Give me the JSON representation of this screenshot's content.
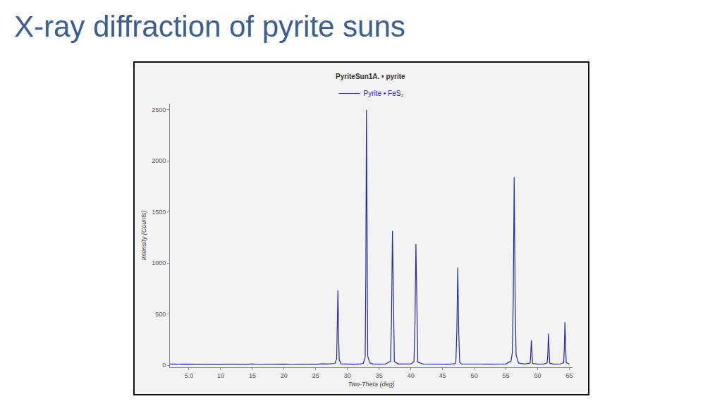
{
  "page": {
    "title": "X-ray diffraction of pyrite suns"
  },
  "chart_data": {
    "type": "line",
    "title": "PyriteSun1A. • pyrite",
    "x_label": "Two-Theta (deg)",
    "y_label": "Intensity (Counts)",
    "xlim": [
      2,
      65.5
    ],
    "xticks": [
      {
        "value": 5,
        "label": "5.0"
      },
      10,
      15,
      20,
      25,
      30,
      35,
      40,
      45,
      50,
      55,
      60,
      65
    ],
    "ylim": [
      -20,
      2560
    ],
    "yticks": [
      0,
      500,
      1000,
      1500,
      2000,
      2500
    ],
    "grid": false,
    "legend": "top",
    "series": [
      {
        "name": "Pyrite • FeS₂",
        "color": "#2a2aa0",
        "x": [
          2,
          3,
          4,
          5,
          6,
          7,
          8,
          9,
          10,
          11,
          12,
          13,
          14,
          15,
          16,
          17,
          18,
          19,
          20,
          21,
          22,
          23,
          24,
          25,
          26,
          27,
          27.5,
          28,
          28.3,
          28.4,
          28.5,
          28.6,
          28.7,
          29,
          30,
          31,
          32,
          32.5,
          32.8,
          32.9,
          33.0,
          33.1,
          33.2,
          33.5,
          34,
          35,
          36,
          36.8,
          36.95,
          37.1,
          37.25,
          37.4,
          38,
          39,
          40,
          40.5,
          40.65,
          40.8,
          40.95,
          41.1,
          42,
          43,
          44,
          45,
          46,
          47,
          47.1,
          47.25,
          47.4,
          47.55,
          47.7,
          48,
          49,
          50,
          51,
          52,
          53,
          54,
          55,
          55.8,
          56.0,
          56.15,
          56.3,
          56.45,
          56.6,
          57,
          58,
          58.8,
          58.9,
          59.0,
          59.1,
          59.2,
          60,
          61,
          61.5,
          61.6,
          61.7,
          61.8,
          61.9,
          62.5,
          63,
          63.5,
          64.1,
          64.2,
          64.3,
          64.4,
          64.5,
          65
        ],
        "values": [
          12,
          8,
          10,
          9,
          7,
          11,
          6,
          8,
          7,
          9,
          6,
          8,
          7,
          12,
          6,
          8,
          7,
          9,
          10,
          6,
          8,
          7,
          9,
          8,
          14,
          12,
          15,
          18,
          60,
          300,
          732,
          300,
          50,
          14,
          10,
          9,
          12,
          18,
          80,
          900,
          2500,
          900,
          90,
          25,
          12,
          10,
          11,
          40,
          450,
          1313,
          450,
          35,
          12,
          10,
          12,
          35,
          420,
          1187,
          420,
          30,
          10,
          9,
          11,
          10,
          9,
          15,
          30,
          330,
          956,
          330,
          28,
          12,
          10,
          9,
          11,
          10,
          9,
          10,
          12,
          40,
          120,
          640,
          1840,
          640,
          100,
          20,
          12,
          20,
          90,
          244,
          90,
          18,
          10,
          12,
          22,
          110,
          310,
          110,
          20,
          10,
          12,
          11,
          25,
          150,
          422,
          150,
          24,
          12
        ]
      }
    ]
  }
}
